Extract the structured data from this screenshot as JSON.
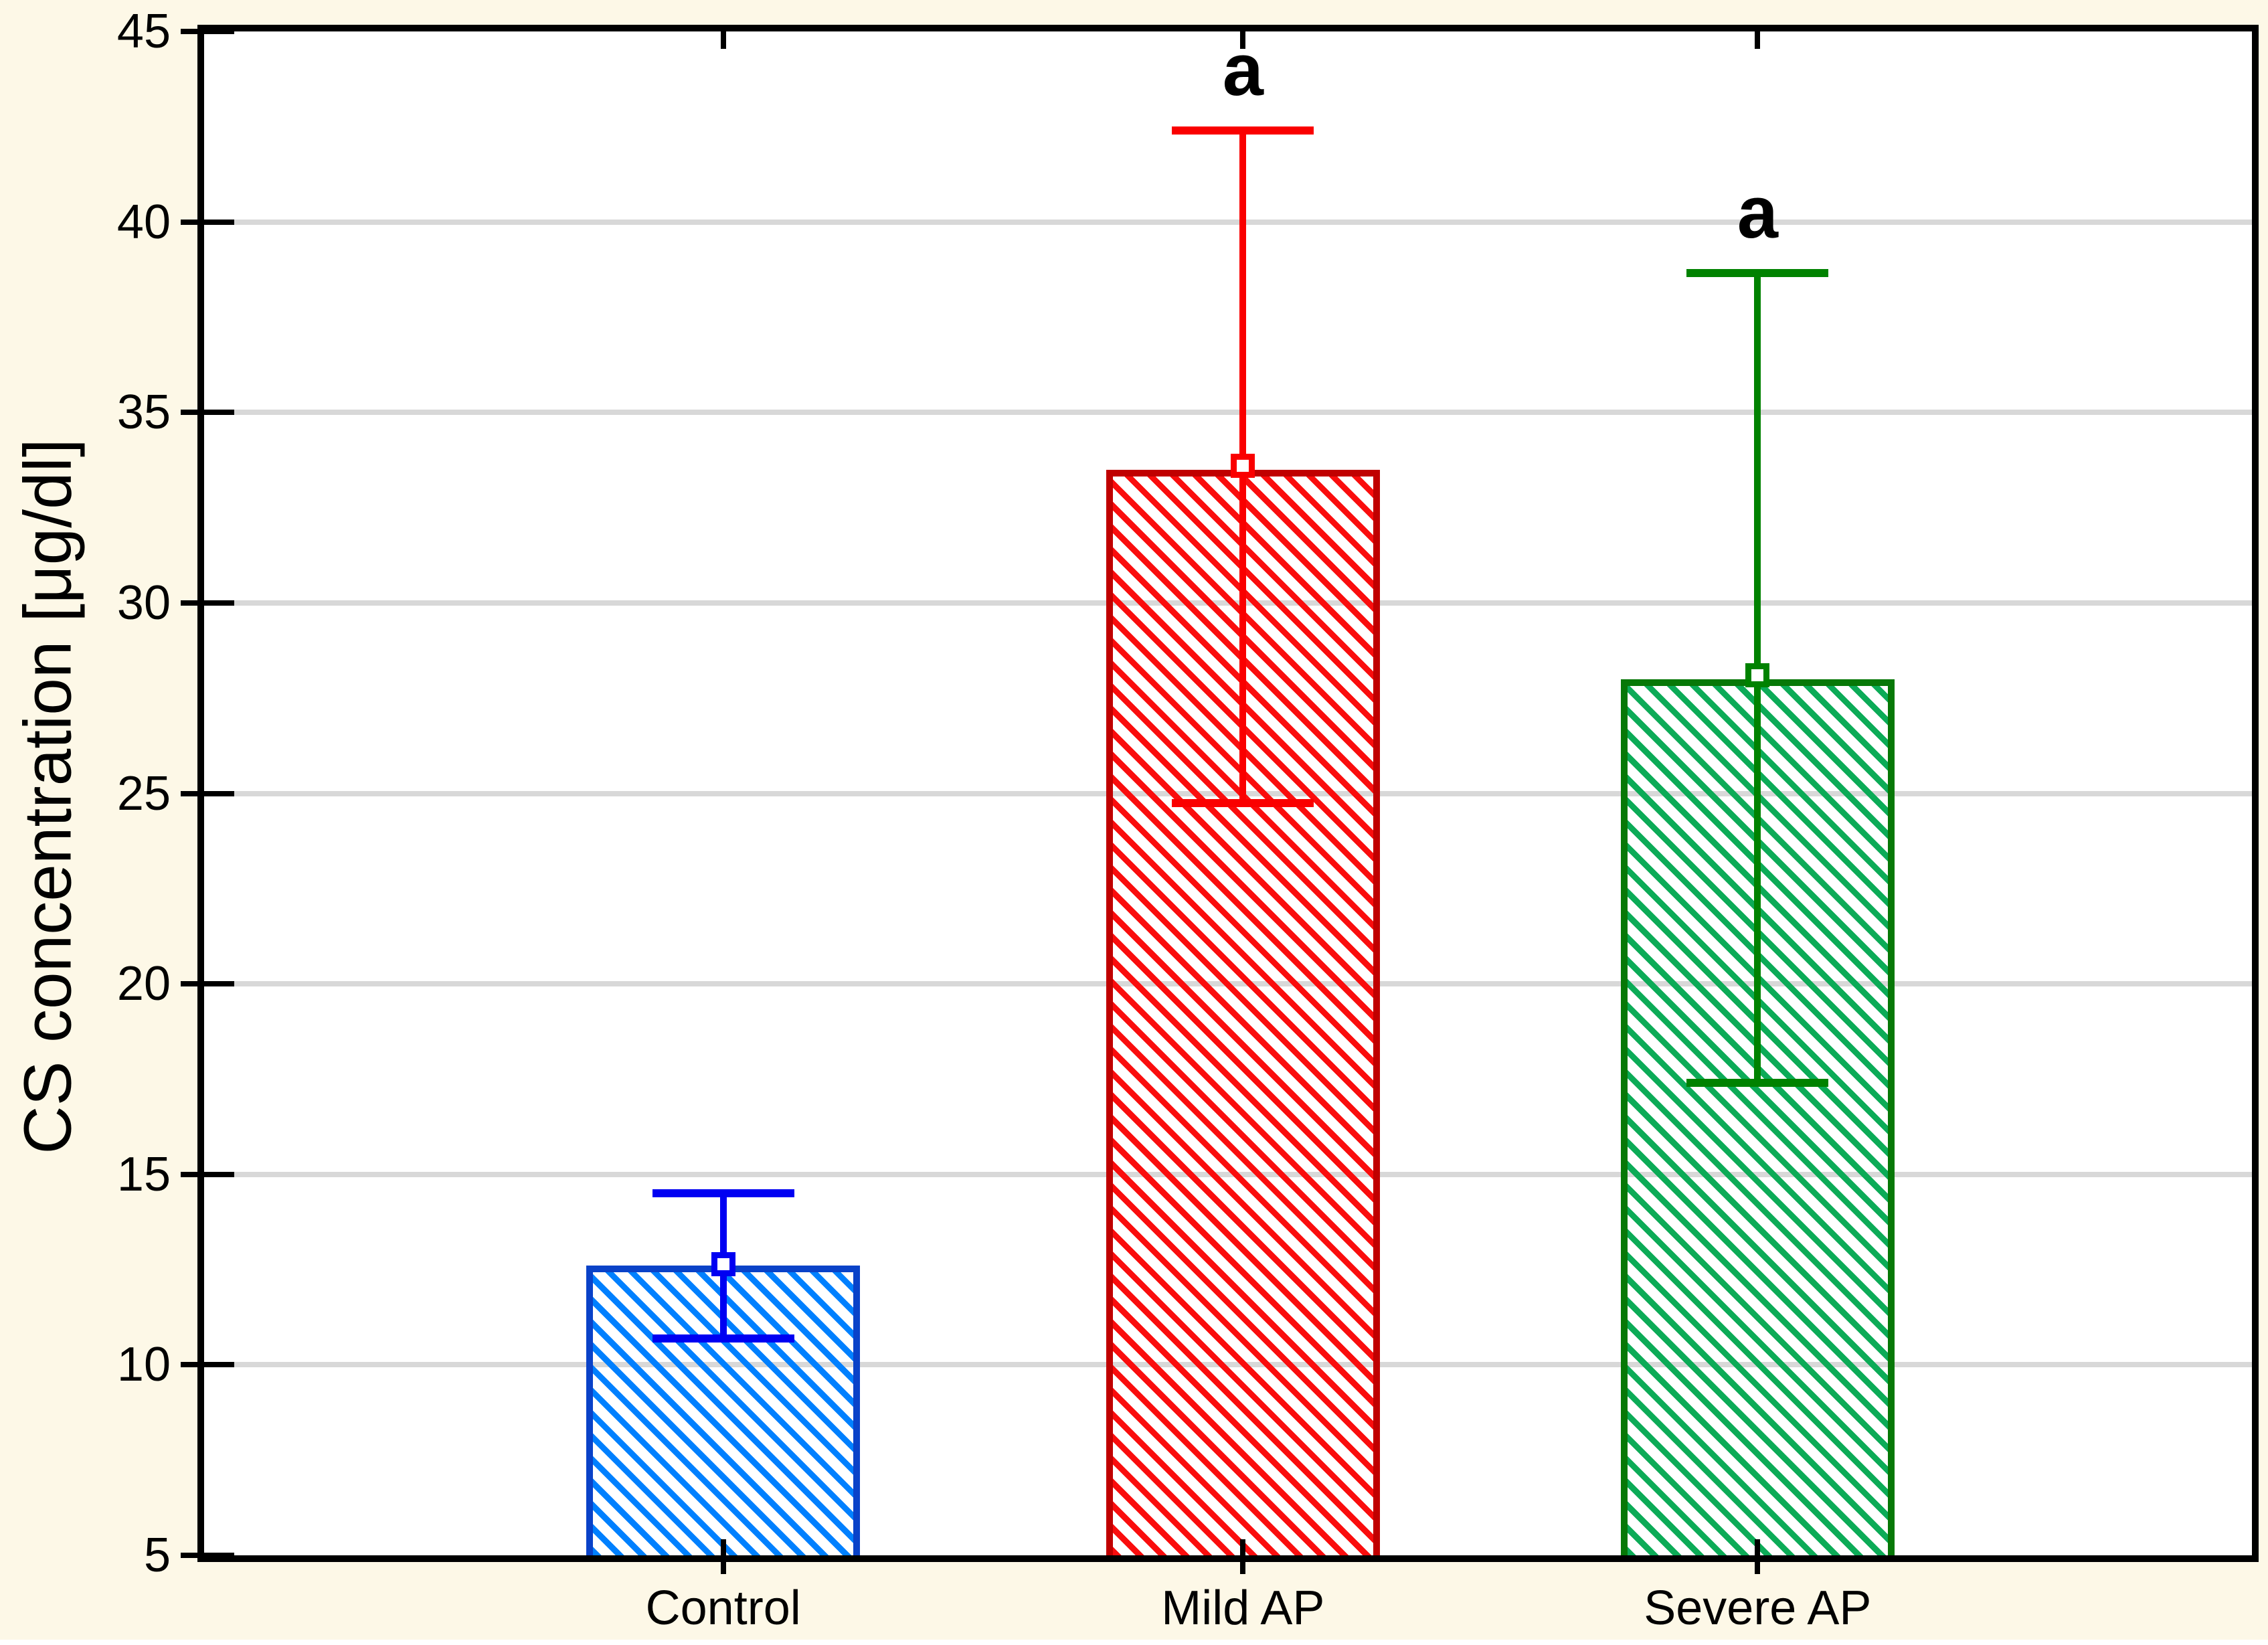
{
  "chart_data": {
    "type": "bar",
    "title": "",
    "ylabel": "CS concentration [μg/dl]",
    "xlabel": "",
    "ylim": [
      5,
      45
    ],
    "yticks": [
      45,
      40,
      35,
      30,
      25,
      20,
      15,
      10,
      5
    ],
    "grid": "horizontal",
    "legend": false,
    "background_color": "#FDF8E7",
    "plot_background_color": "#FFFFFF",
    "gridline_color": "#D8D8D8",
    "axis_color": "#000000",
    "categories": [
      "Control",
      "Mild AP",
      "Severe AP"
    ],
    "series": [
      {
        "name": "Control",
        "bar_top": 12.6,
        "mean": 12.65,
        "whisker_upper": 14.5,
        "whisker_lower": 10.7,
        "annotation": "",
        "color_border": "#0A42C8",
        "color_hatch": "#0080FF",
        "color_error": "#0000F2"
      },
      {
        "name": "Mild AP",
        "bar_top": 33.5,
        "mean": 33.6,
        "whisker_upper": 42.4,
        "whisker_lower": 24.75,
        "annotation": "a",
        "color_border": "#C00000",
        "color_hatch": "#FA0D0D",
        "color_error": "#FA0000"
      },
      {
        "name": "Severe AP",
        "bar_top": 28.0,
        "mean": 28.1,
        "whisker_upper": 38.65,
        "whisker_lower": 17.4,
        "annotation": "a",
        "color_border": "#077807",
        "color_hatch": "#0CAB57",
        "color_error": "#008200"
      }
    ]
  }
}
